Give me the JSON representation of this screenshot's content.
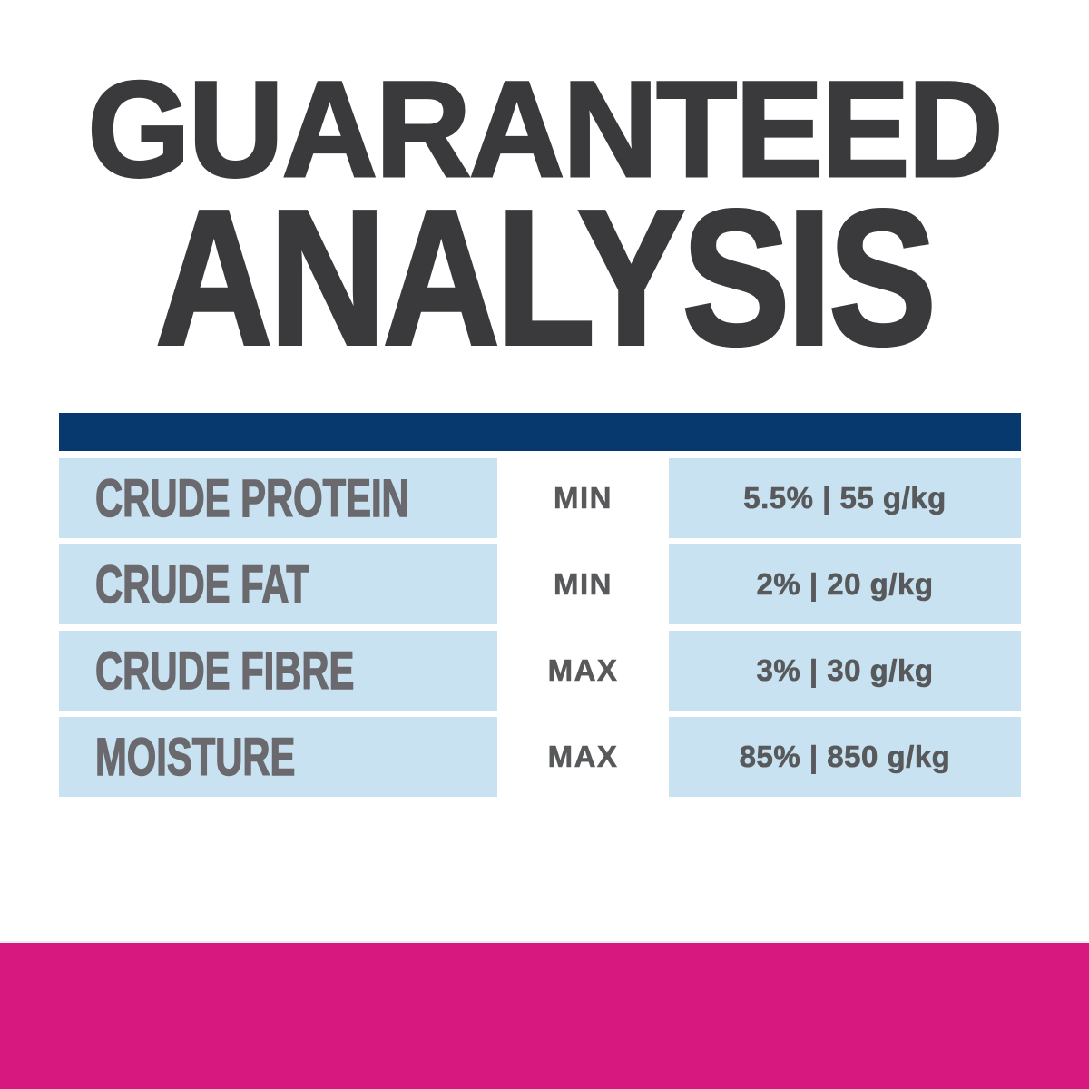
{
  "heading": {
    "line1": "GUARANTEED",
    "line2": "ANALYSIS",
    "color": "#3a3a3c"
  },
  "table": {
    "header_bar_color": "#07386e",
    "row_bg_color": "#c8e2f1",
    "nutrient_color": "#6a696d",
    "value_color": "#58595b",
    "rows": [
      {
        "nutrient": "CRUDE PROTEIN",
        "qualifier": "MIN",
        "value": "5.5% | 55 g/kg"
      },
      {
        "nutrient": "CRUDE FAT",
        "qualifier": "MIN",
        "value": "2% | 20 g/kg"
      },
      {
        "nutrient": "CRUDE FIBRE",
        "qualifier": "MAX",
        "value": "3% | 30 g/kg"
      },
      {
        "nutrient": "MOISTURE",
        "qualifier": "MAX",
        "value": "85% | 850 g/kg"
      }
    ]
  },
  "footer": {
    "bar_color": "#d6187f"
  }
}
